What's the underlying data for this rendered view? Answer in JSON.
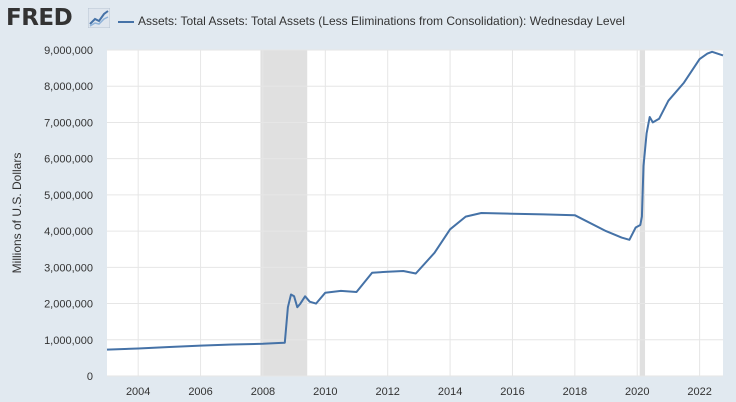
{
  "brand": {
    "logo_text": "FRED",
    "logo_icon": "trend-line-icon"
  },
  "chart_data": {
    "type": "line",
    "title": "",
    "xlabel": "",
    "ylabel": "Millions of U.S. Dollars",
    "ylim": [
      0,
      9000000
    ],
    "xlim": [
      2003.0,
      2022.75
    ],
    "yticks": [
      0,
      1000000,
      2000000,
      3000000,
      4000000,
      5000000,
      6000000,
      7000000,
      8000000,
      9000000
    ],
    "ytick_labels": [
      "0",
      "1,000,000",
      "2,000,000",
      "3,000,000",
      "4,000,000",
      "5,000,000",
      "6,000,000",
      "7,000,000",
      "8,000,000",
      "9,000,000"
    ],
    "xticks": [
      2004,
      2006,
      2008,
      2010,
      2012,
      2014,
      2016,
      2018,
      2020,
      2022
    ],
    "xtick_labels": [
      "2004",
      "2006",
      "2008",
      "2010",
      "2012",
      "2014",
      "2016",
      "2018",
      "2020",
      "2022"
    ],
    "grid": true,
    "legend": "top",
    "recessions": [
      [
        2007.92,
        2009.42
      ],
      [
        2020.08,
        2020.25
      ]
    ],
    "colors": {
      "line": "#4572a7",
      "recession": "#e0e0e0",
      "grid": "#e6e6e6",
      "background": "#e1e9f0",
      "plot": "#ffffff"
    },
    "series": [
      {
        "name": "Assets: Total Assets: Total Assets (Less Eliminations from Consolidation): Wednesday Level",
        "x": [
          2003.0,
          2004.0,
          2005.0,
          2006.0,
          2007.0,
          2008.0,
          2008.5,
          2008.7,
          2008.8,
          2008.9,
          2009.0,
          2009.1,
          2009.2,
          2009.35,
          2009.5,
          2009.7,
          2010.0,
          2010.5,
          2011.0,
          2011.5,
          2012.0,
          2012.5,
          2012.9,
          2013.5,
          2014.0,
          2014.5,
          2015.0,
          2016.0,
          2017.0,
          2018.0,
          2019.0,
          2019.5,
          2019.75,
          2019.95,
          2020.1,
          2020.15,
          2020.2,
          2020.3,
          2020.4,
          2020.5,
          2020.7,
          2021.0,
          2021.5,
          2022.0,
          2022.25,
          2022.4,
          2022.75
        ],
        "y": [
          730000,
          760000,
          800000,
          840000,
          870000,
          890000,
          910000,
          920000,
          1900000,
          2250000,
          2200000,
          1900000,
          2000000,
          2200000,
          2050000,
          2000000,
          2300000,
          2350000,
          2320000,
          2850000,
          2880000,
          2900000,
          2830000,
          3400000,
          4050000,
          4400000,
          4500000,
          4480000,
          4460000,
          4440000,
          4000000,
          3820000,
          3760000,
          4100000,
          4170000,
          4400000,
          5800000,
          6700000,
          7150000,
          7000000,
          7100000,
          7600000,
          8100000,
          8750000,
          8900000,
          8950000,
          8850000
        ]
      }
    ]
  }
}
